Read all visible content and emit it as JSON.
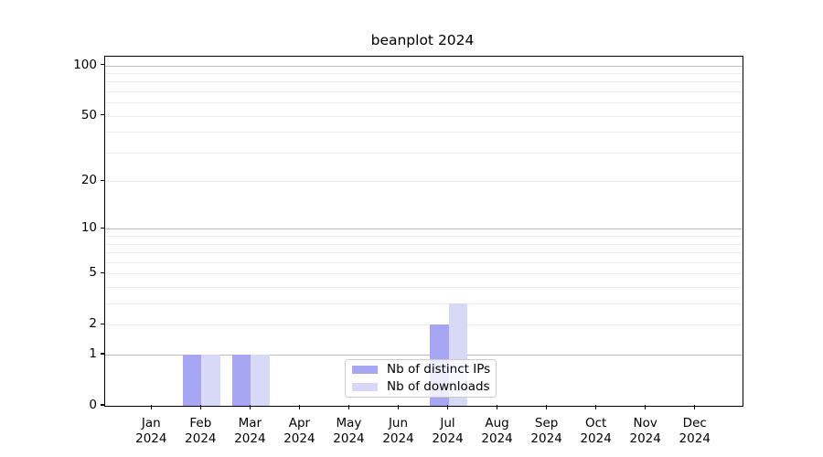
{
  "chart_data": {
    "type": "bar",
    "title": "beanplot 2024",
    "categories": [
      "Jan 2024",
      "Feb 2024",
      "Mar 2024",
      "Apr 2024",
      "May 2024",
      "Jun 2024",
      "Jul 2024",
      "Aug 2024",
      "Sep 2024",
      "Oct 2024",
      "Nov 2024",
      "Dec 2024"
    ],
    "series": [
      {
        "name": "Nb of distinct IPs",
        "color": "#a6a6f2",
        "values": [
          0,
          1,
          1,
          0,
          0,
          0,
          2,
          0,
          0,
          0,
          0,
          0
        ]
      },
      {
        "name": "Nb of downloads",
        "color": "#d8d8f7",
        "values": [
          0,
          1,
          1,
          0,
          0,
          0,
          3,
          0,
          0,
          0,
          0,
          0
        ]
      }
    ],
    "yscale": "log1p",
    "ylim": [
      0,
      112
    ],
    "y_tick_values": [
      0,
      1,
      2,
      5,
      10,
      20,
      50,
      100
    ],
    "grid": {
      "major_values": [
        1,
        10,
        100
      ],
      "minor_values": [
        2,
        3,
        4,
        5,
        6,
        7,
        8,
        9,
        20,
        30,
        40,
        50,
        60,
        70,
        80,
        90
      ]
    },
    "legend_position": "lower center inside plot"
  },
  "colors": {
    "background": "#ffffff",
    "text": "#000000",
    "spine": "#000000",
    "grid_major": "#bcbcbc",
    "grid_minor": "#ececec",
    "legend_border": "#cccccc",
    "series_ips": "#a6a6f2",
    "series_downloads": "#d8d8f7"
  }
}
